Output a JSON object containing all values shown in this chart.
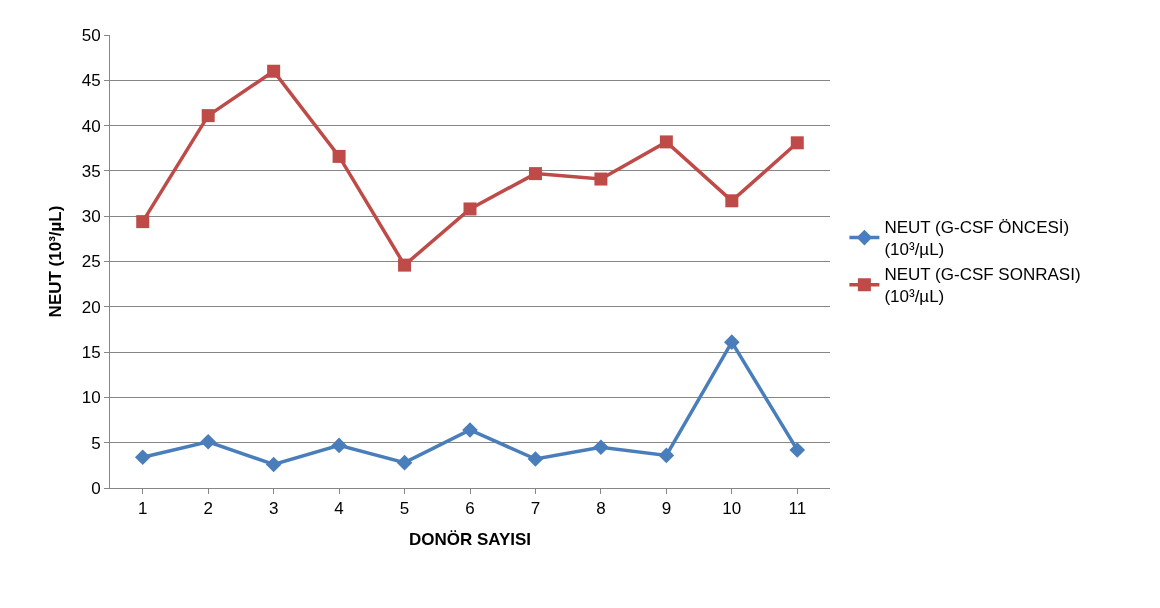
{
  "chart_data": {
    "type": "line",
    "xlabel": "DONÖR SAYISI",
    "ylabel": "NEUT (10³/µL)",
    "categories": [
      "1",
      "2",
      "3",
      "4",
      "5",
      "6",
      "7",
      "8",
      "9",
      "10",
      "11"
    ],
    "series": [
      {
        "name": "NEUT (G-CSF ÖNCESİ) (10³/µL)",
        "color": "#4a7ebb",
        "marker": "diamond",
        "values": [
          3.4,
          5.1,
          2.6,
          4.7,
          2.8,
          6.4,
          3.2,
          4.5,
          3.6,
          16.1,
          4.2
        ]
      },
      {
        "name": "NEUT (G-CSF SONRASI) (10³/µL)",
        "color": "#be4b48",
        "marker": "square",
        "values": [
          29.4,
          41.1,
          46.0,
          36.6,
          24.6,
          30.8,
          34.7,
          34.1,
          38.2,
          31.7,
          38.1
        ]
      }
    ],
    "ylim": [
      0,
      50
    ],
    "yticks": [
      0,
      5,
      10,
      15,
      20,
      25,
      30,
      35,
      40,
      45,
      50
    ],
    "grid": "y",
    "legend": "right",
    "line_style": "solid"
  }
}
